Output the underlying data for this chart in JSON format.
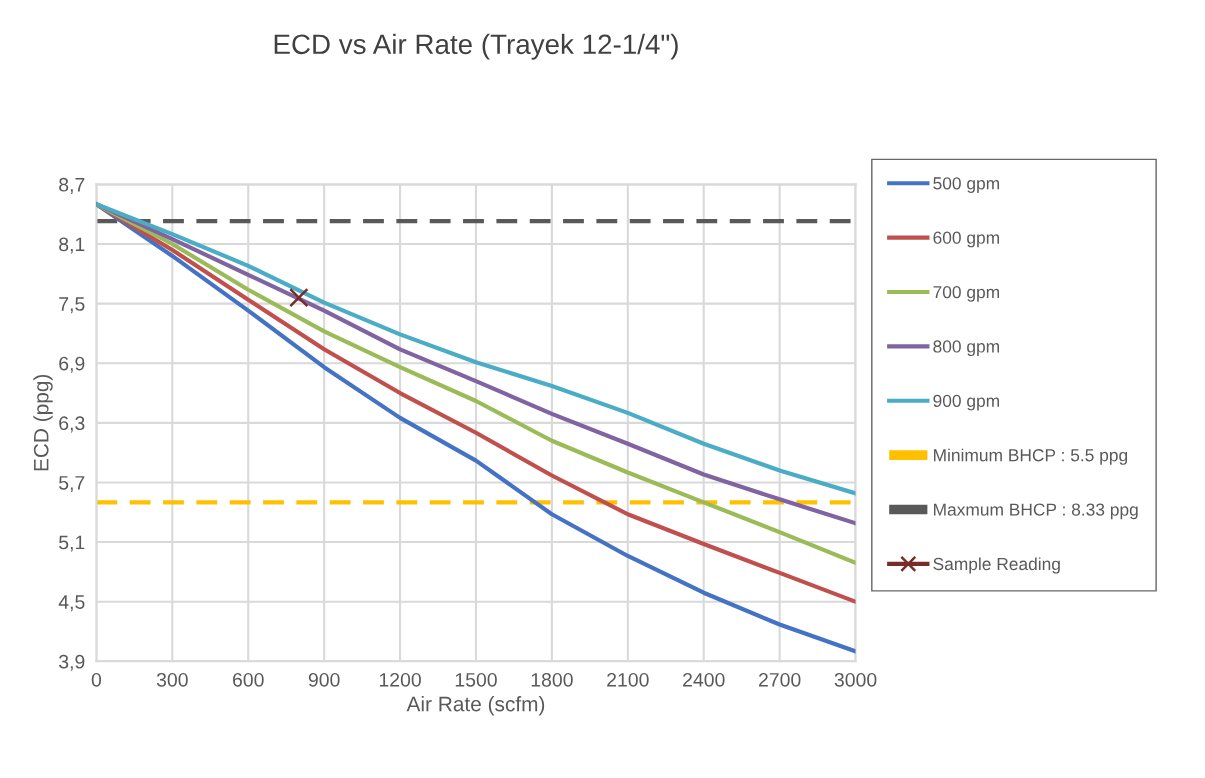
{
  "chart_data": {
    "type": "line",
    "title": "ECD vs Air Rate (Trayek 12-1/4\")",
    "xlabel": "Air Rate (scfm)",
    "ylabel": "ECD (ppg)",
    "x": [
      0,
      300,
      600,
      900,
      1200,
      1500,
      1800,
      2100,
      2400,
      2700,
      3000
    ],
    "series": [
      {
        "name": "500 gpm",
        "color": "#4472c4",
        "values": [
          8.5,
          7.98,
          7.43,
          6.86,
          6.35,
          5.92,
          5.38,
          4.96,
          4.59,
          4.27,
          4.0
        ]
      },
      {
        "name": "600 gpm",
        "color": "#c0504d",
        "values": [
          8.5,
          8.04,
          7.54,
          7.04,
          6.6,
          6.2,
          5.77,
          5.38,
          5.08,
          4.79,
          4.5
        ]
      },
      {
        "name": "700 gpm",
        "color": "#9bbb59",
        "values": [
          8.5,
          8.1,
          7.64,
          7.22,
          6.86,
          6.52,
          6.12,
          5.8,
          5.5,
          5.2,
          4.89
        ]
      },
      {
        "name": "800 gpm",
        "color": "#8064a2",
        "values": [
          8.5,
          8.15,
          7.79,
          7.43,
          7.04,
          6.72,
          6.39,
          6.09,
          5.78,
          5.53,
          5.29
        ]
      },
      {
        "name": "900 gpm",
        "color": "#4bacc6",
        "values": [
          8.5,
          8.2,
          7.88,
          7.51,
          7.19,
          6.91,
          6.67,
          6.4,
          6.09,
          5.82,
          5.59
        ]
      },
      {
        "name": "Sample Reading",
        "type": "scatter",
        "marker": "cross",
        "color": "#772c2a",
        "x": [
          800
        ],
        "values": [
          7.56
        ]
      }
    ],
    "ref_lines": [
      {
        "axis": "y",
        "value": 5.5,
        "label": "Minimum BHCP : 5.5 ppg",
        "color": "#ffc000",
        "line_style": "dashed"
      },
      {
        "axis": "y",
        "value": 8.33,
        "label": "Maxmum BHCP : 8.33 ppg",
        "color": "#595959",
        "line_style": "dashed"
      }
    ],
    "xlim": [
      0,
      3000
    ],
    "xticks": [
      0,
      300,
      600,
      900,
      1200,
      1500,
      1800,
      2100,
      2400,
      2700,
      3000
    ],
    "ylim": [
      3.9,
      8.7
    ],
    "yticks": [
      {
        "value": 3.9,
        "label": "3,9"
      },
      {
        "value": 4.5,
        "label": "4,5"
      },
      {
        "value": 5.1,
        "label": "5,1"
      },
      {
        "value": 5.7,
        "label": "5,7"
      },
      {
        "value": 6.3,
        "label": "6,3"
      },
      {
        "value": 6.9,
        "label": "6,9"
      },
      {
        "value": 7.5,
        "label": "7,5"
      },
      {
        "value": 8.1,
        "label": "8,1"
      },
      {
        "value": 8.7,
        "label": "8,7"
      }
    ],
    "grid": true,
    "legend": "right",
    "marker": "none",
    "line_style": "solid"
  }
}
